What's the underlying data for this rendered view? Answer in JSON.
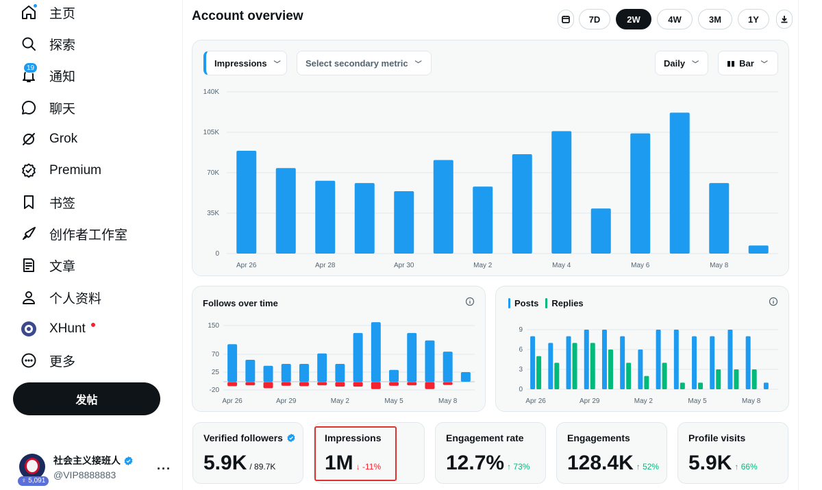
{
  "sidebar": {
    "items": [
      {
        "label": "主页",
        "icon": "home-icon"
      },
      {
        "label": "探索",
        "icon": "search-icon"
      },
      {
        "label": "通知",
        "icon": "bell-icon",
        "badge": "19"
      },
      {
        "label": "聊天",
        "icon": "chat-icon"
      },
      {
        "label": "Grok",
        "icon": "grok-icon"
      },
      {
        "label": "Premium",
        "icon": "premium-icon"
      },
      {
        "label": "书签",
        "icon": "bookmark-icon"
      },
      {
        "label": "创作者工作室",
        "icon": "rocket-icon"
      },
      {
        "label": "文章",
        "icon": "article-icon"
      },
      {
        "label": "个人资料",
        "icon": "person-icon"
      },
      {
        "label": "XHunt",
        "icon": "xhunt-icon"
      },
      {
        "label": "更多",
        "icon": "more-circle-icon"
      }
    ],
    "post_button": "发帖",
    "account": {
      "name": "社会主义接班人",
      "handle": "@VIP8888883",
      "avatar_tag": "5,091"
    }
  },
  "header": {
    "title": "Account overview",
    "ranges": [
      "7D",
      "2W",
      "4W",
      "3M",
      "1Y"
    ],
    "active_range": "2W"
  },
  "main_chart": {
    "primary_metric": "Impressions",
    "secondary_metric_placeholder": "Select secondary metric",
    "granularity": "Daily",
    "chart_type_label": "Bar"
  },
  "follows_card": {
    "title": "Follows over time"
  },
  "posts_card": {
    "legend": [
      "Posts",
      "Replies"
    ]
  },
  "stats": [
    {
      "label": "Verified followers",
      "value": "5.9K",
      "sub": "/ 89.7K",
      "kind": "plain",
      "verified": true
    },
    {
      "label": "Impressions",
      "value": "1M",
      "sub": "↓ -11%",
      "kind": "neg"
    },
    {
      "label": "Engagement rate",
      "value": "12.7%",
      "sub": "↑ 73%",
      "kind": "pos"
    },
    {
      "label": "Engagements",
      "value": "128.4K",
      "sub": "↑ 52%",
      "kind": "pos"
    },
    {
      "label": "Profile visits",
      "value": "5.9K",
      "sub": "↑ 66%",
      "kind": "pos"
    }
  ],
  "colors": {
    "accent": "#1d9bf0",
    "negative": "#f4212e",
    "replies": "#00ba7c",
    "dark": "#0f1419"
  },
  "chart_data": [
    {
      "type": "bar",
      "title": "Impressions",
      "categories": [
        "Apr 26",
        "Apr 27",
        "Apr 28",
        "Apr 29",
        "Apr 30",
        "May 1",
        "May 2",
        "May 3",
        "May 4",
        "May 5",
        "May 6",
        "May 7",
        "May 8",
        "May 9"
      ],
      "tick_labels": [
        "Apr 26",
        "Apr 28",
        "Apr 30",
        "May 2",
        "May 4",
        "May 6",
        "May 8"
      ],
      "y_ticks": [
        "0",
        "35K",
        "70K",
        "105K",
        "140K"
      ],
      "values": [
        89000,
        74000,
        63000,
        61000,
        54000,
        81000,
        58000,
        86000,
        106000,
        39000,
        104000,
        122000,
        61000,
        7000
      ],
      "ylim": [
        0,
        140000
      ],
      "grid": true
    },
    {
      "type": "bar",
      "title": "Follows over time",
      "categories": [
        "Apr 26",
        "Apr 27",
        "Apr 28",
        "Apr 29",
        "Apr 30",
        "May 1",
        "May 2",
        "May 3",
        "May 4",
        "May 5",
        "May 6",
        "May 7",
        "May 8",
        "May 9"
      ],
      "tick_labels": [
        "Apr 26",
        "Apr 29",
        "May 2",
        "May 5",
        "May 8"
      ],
      "y_ticks": [
        "-20",
        "25",
        "70",
        "150"
      ],
      "series": [
        {
          "name": "Follows",
          "values": [
            100,
            58,
            42,
            47,
            47,
            75,
            47,
            130,
            159,
            31,
            130,
            110,
            80,
            25
          ]
        },
        {
          "name": "Unfollows",
          "values": [
            -10,
            -8,
            -15,
            -9,
            -10,
            -8,
            -11,
            -11,
            -17,
            -9,
            -8,
            -17,
            -7,
            0
          ]
        }
      ],
      "ylim": [
        -20,
        160
      ],
      "grid": true
    },
    {
      "type": "bar",
      "categories": [
        "Apr 26",
        "Apr 27",
        "Apr 28",
        "Apr 29",
        "Apr 30",
        "May 1",
        "May 2",
        "May 3",
        "May 4",
        "May 5",
        "May 6",
        "May 7",
        "May 8",
        "May 9"
      ],
      "tick_labels": [
        "Apr 26",
        "Apr 29",
        "May 2",
        "May 5",
        "May 8"
      ],
      "y_ticks": [
        "0",
        "3",
        "6",
        "9"
      ],
      "series": [
        {
          "name": "Posts",
          "values": [
            8,
            7,
            8,
            9,
            9,
            8,
            6,
            9,
            9,
            8,
            8,
            9,
            8,
            1
          ]
        },
        {
          "name": "Replies",
          "values": [
            5,
            4,
            7,
            7,
            6,
            4,
            2,
            4,
            1,
            1,
            3,
            3,
            3,
            0
          ]
        }
      ],
      "ylim": [
        0,
        9
      ],
      "grid": true
    }
  ]
}
